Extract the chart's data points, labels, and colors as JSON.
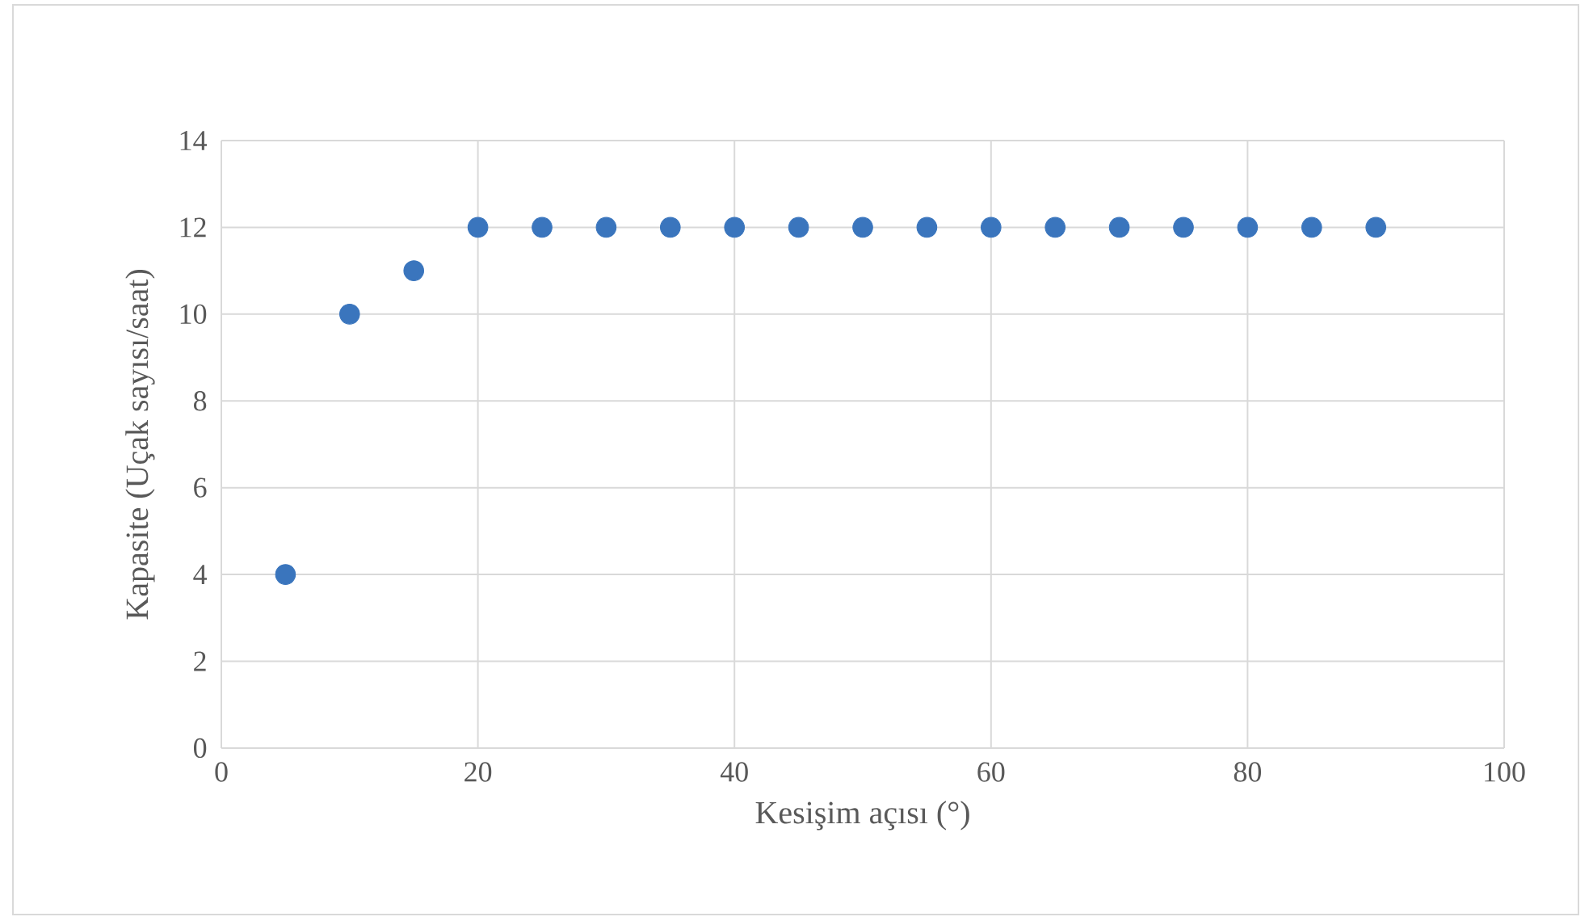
{
  "chart_data": {
    "type": "scatter",
    "xlabel": "Kesişim açısı (°)",
    "ylabel": "Kapasite (Uçak sayısı/saat)",
    "x": [
      5,
      10,
      15,
      20,
      25,
      30,
      35,
      40,
      45,
      50,
      55,
      60,
      65,
      70,
      75,
      80,
      85,
      90
    ],
    "series": [
      {
        "color": "#3a75bd",
        "values": [
          4,
          10,
          11,
          12,
          12,
          12,
          12,
          12,
          12,
          12,
          12,
          12,
          12,
          12,
          12,
          12,
          12,
          12
        ]
      }
    ],
    "xlim": [
      0,
      100
    ],
    "xticks": [
      0,
      20,
      40,
      60,
      80,
      100
    ],
    "ylim": [
      0,
      14
    ],
    "yticks": [
      0,
      2,
      4,
      6,
      8,
      10,
      12,
      14
    ],
    "grid": true,
    "marker": "circle"
  }
}
